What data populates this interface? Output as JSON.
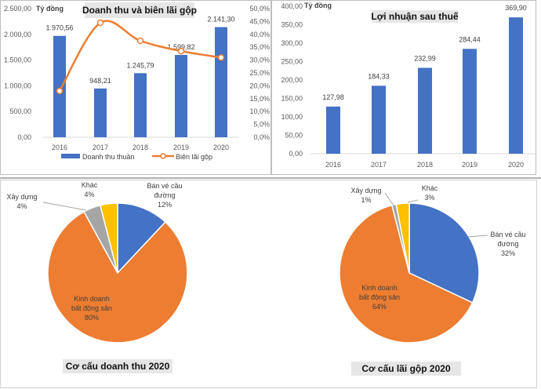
{
  "chart_data": [
    {
      "type": "bar+line",
      "title": "Doanh thu và biên lãi gộp",
      "unit_label": "Tỷ đồng",
      "categories": [
        "2016",
        "2017",
        "2018",
        "2019",
        "2020"
      ],
      "categories_labels": [
        "2016",
        "2017",
        "2018",
        "2019",
        "2020"
      ],
      "ylim": [
        0,
        2500
      ],
      "y_ticks": [
        "0,00",
        "500,00",
        "1.000,00",
        "1.500,00",
        "2.000,00",
        "2.500,00"
      ],
      "y2lim": [
        0,
        50
      ],
      "y2_ticks": [
        "0,0%",
        "5,0%",
        "10,0%",
        "15,0%",
        "20,0%",
        "25,0%",
        "30,0%",
        "35,0%",
        "40,0%",
        "45,0%",
        "50,0%"
      ],
      "series": [
        {
          "name": "Doanh thu thuần",
          "type": "bar",
          "color": "#4472C4",
          "values": [
            1970.56,
            948.21,
            1245.79,
            1599.82,
            2141.3
          ],
          "data_labels": [
            "1.970,56",
            "948,21",
            "1.245,79",
            "1.599,82",
            "2.141,30"
          ]
        },
        {
          "name": "Biên lãi gộp",
          "type": "line",
          "axis": "right",
          "color": "#ED7D31",
          "values": [
            18.0,
            44.5,
            37.5,
            33.5,
            31.0
          ]
        }
      ],
      "legend": "bottom",
      "grid": false
    },
    {
      "type": "bar",
      "title": "Lợi nhuận sau thuế",
      "unit_label": "Tỷ đồng",
      "categories": [
        "2016",
        "2017",
        "2018",
        "2019",
        "2020"
      ],
      "ylim": [
        0,
        400
      ],
      "y_ticks": [
        "0,00",
        "50,00",
        "100,00",
        "150,00",
        "200,00",
        "250,00",
        "300,00",
        "350,00",
        "400,00"
      ],
      "values": [
        127.98,
        184.33,
        232.99,
        284.44,
        369.9
      ],
      "data_labels": [
        "127,98",
        "184,33",
        "232,99",
        "284,44",
        "369,90"
      ],
      "color": "#4472C4",
      "grid": false
    },
    {
      "type": "pie",
      "title": "Cơ cấu doanh thu 2020",
      "slices": [
        {
          "label_lines": [
            "Bán vé cầu",
            "đường",
            "12%"
          ],
          "value": 12,
          "color": "#4472C4"
        },
        {
          "label_lines": [
            "Kinh doanh",
            "bất động sản",
            "80%"
          ],
          "value": 80,
          "color": "#ED7D31"
        },
        {
          "label_lines": [
            "Xây dựng",
            "4%"
          ],
          "value": 4,
          "color": "#A5A5A5"
        },
        {
          "label_lines": [
            "Khác",
            "4%"
          ],
          "value": 4,
          "color": "#FFC000"
        }
      ]
    },
    {
      "type": "pie",
      "title": "Cơ cấu lãi gộp 2020",
      "slices": [
        {
          "label_lines": [
            "Bán vé cầu",
            "đường",
            "32%"
          ],
          "value": 32,
          "color": "#4472C4"
        },
        {
          "label_lines": [
            "Kinh doanh",
            "bất động sản",
            "64%"
          ],
          "value": 64,
          "color": "#ED7D31"
        },
        {
          "label_lines": [
            "Xây dựng",
            "1%"
          ],
          "value": 1,
          "color": "#A5A5A5"
        },
        {
          "label_lines": [
            "Khác",
            "3%"
          ],
          "value": 3,
          "color": "#FFC000"
        }
      ]
    }
  ]
}
